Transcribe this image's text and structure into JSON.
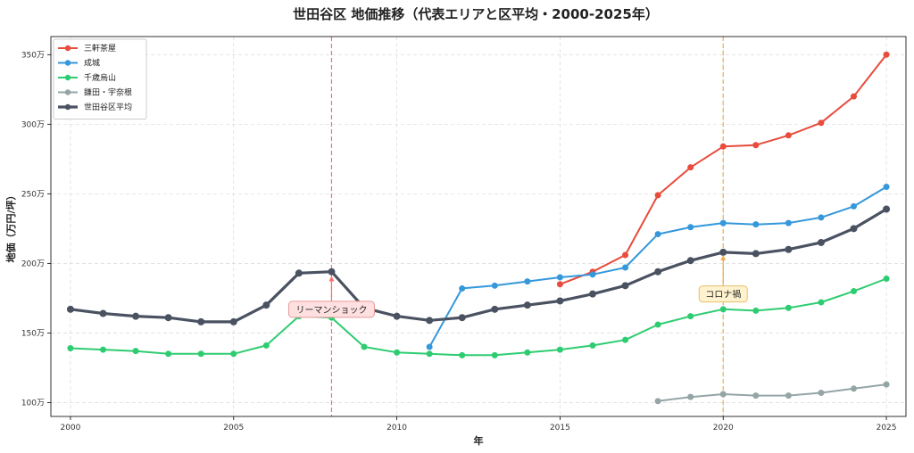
{
  "chart_data": {
    "type": "line",
    "title": "世田谷区 地価推移（代表エリアと区平均・2000-2025年）",
    "xlabel": "年",
    "ylabel": "地価（万円/坪）",
    "xlim": [
      1999.4,
      2025.6
    ],
    "ylim": [
      90,
      363
    ],
    "x_ticks": [
      2000,
      2005,
      2010,
      2015,
      2020,
      2025
    ],
    "y_ticks": [
      100,
      150,
      200,
      250,
      300,
      350
    ],
    "y_tick_labels": [
      "100万",
      "150万",
      "200万",
      "250万",
      "300万",
      "350万"
    ],
    "grid": true,
    "legend_position": "top-left",
    "series": [
      {
        "name": "三軒茶屋",
        "color": "#e74c3c",
        "width": 2,
        "x": [
          2015,
          2016,
          2017,
          2018,
          2019,
          2020,
          2021,
          2022,
          2023,
          2024,
          2025
        ],
        "y": [
          185,
          194,
          206,
          249,
          269,
          284,
          285,
          292,
          301,
          320,
          350
        ]
      },
      {
        "name": "成城",
        "color": "#3498db",
        "width": 2,
        "x": [
          2011,
          2012,
          2013,
          2014,
          2015,
          2016,
          2017,
          2018,
          2019,
          2020,
          2021,
          2022,
          2023,
          2024,
          2025
        ],
        "y": [
          140,
          182,
          184,
          187,
          190,
          192,
          197,
          221,
          226,
          229,
          228,
          229,
          233,
          241,
          255
        ]
      },
      {
        "name": "千歳烏山",
        "color": "#2ecc71",
        "width": 2,
        "x": [
          2000,
          2001,
          2002,
          2003,
          2004,
          2005,
          2006,
          2007,
          2008,
          2009,
          2010,
          2011,
          2012,
          2013,
          2014,
          2015,
          2016,
          2017,
          2018,
          2019,
          2020,
          2021,
          2022,
          2023,
          2024,
          2025
        ],
        "y": [
          139,
          138,
          137,
          135,
          135,
          135,
          141,
          162,
          161,
          140,
          136,
          135,
          134,
          134,
          136,
          138,
          141,
          145,
          156,
          162,
          167,
          166,
          168,
          172,
          180,
          189
        ]
      },
      {
        "name": "鎌田・宇奈根",
        "color": "#95a5a6",
        "width": 2,
        "x": [
          2018,
          2019,
          2020,
          2021,
          2022,
          2023,
          2024,
          2025
        ],
        "y": [
          101,
          104,
          106,
          105,
          105,
          107,
          110,
          113
        ]
      },
      {
        "name": "世田谷区平均",
        "color": "#4a5262",
        "width": 3.2,
        "x": [
          2000,
          2001,
          2002,
          2003,
          2004,
          2005,
          2006,
          2007,
          2008,
          2009,
          2010,
          2011,
          2012,
          2013,
          2014,
          2015,
          2016,
          2017,
          2018,
          2019,
          2020,
          2021,
          2022,
          2023,
          2024,
          2025
        ],
        "y": [
          167,
          164,
          162,
          161,
          158,
          158,
          170,
          193,
          194,
          168,
          162,
          159,
          161,
          167,
          170,
          173,
          178,
          184,
          194,
          202,
          208,
          207,
          210,
          215,
          225,
          239
        ]
      }
    ],
    "annotations": [
      {
        "label": "リーマンショック",
        "x": 2008,
        "y": 167,
        "line_color": "#ff6b6b",
        "box_fill": "#ffe0e0",
        "box_stroke": "#e79a9a",
        "arrow_to_y": 191
      },
      {
        "label": "コロナ禍",
        "x": 2020,
        "y": 178,
        "line_color": "#f0ad4e",
        "box_fill": "#fff3cf",
        "box_stroke": "#e6c06a",
        "arrow_to_y": 206
      }
    ]
  }
}
